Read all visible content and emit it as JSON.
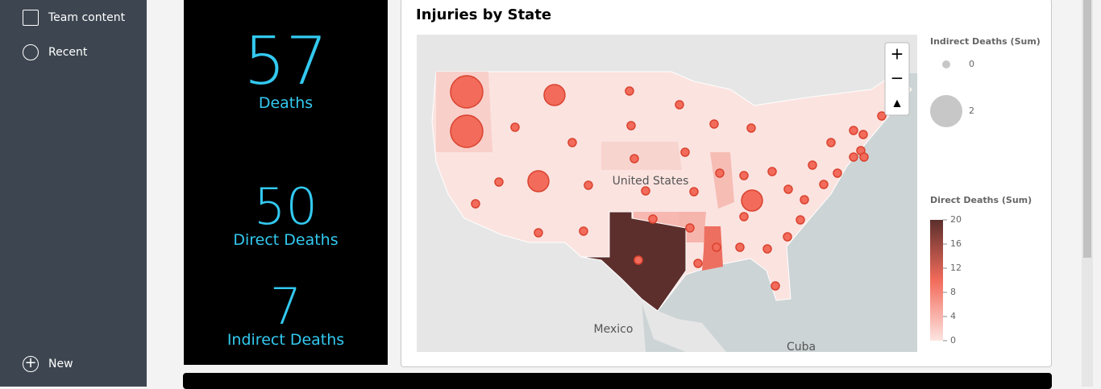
{
  "sidebar": {
    "items": [
      "Team content",
      "Recent"
    ],
    "new": "New"
  },
  "kpis": [
    {
      "value": 57,
      "label": "Deaths"
    },
    {
      "value": 50,
      "label": "Direct Deaths"
    },
    {
      "value": 7,
      "label": "Indirect Deaths"
    }
  ],
  "map_card": {
    "title": "Injuries by State",
    "places": [
      "United States",
      "Mexico",
      "Cuba"
    ],
    "size_legend": {
      "title": "Indirect Deaths (Sum)",
      "items": [
        0,
        2
      ]
    },
    "color_legend": {
      "title": "Direct Deaths (Sum)",
      "lim": [
        0,
        20
      ],
      "ticks": [
        0,
        4,
        8,
        12,
        16,
        20
      ]
    }
  }
}
